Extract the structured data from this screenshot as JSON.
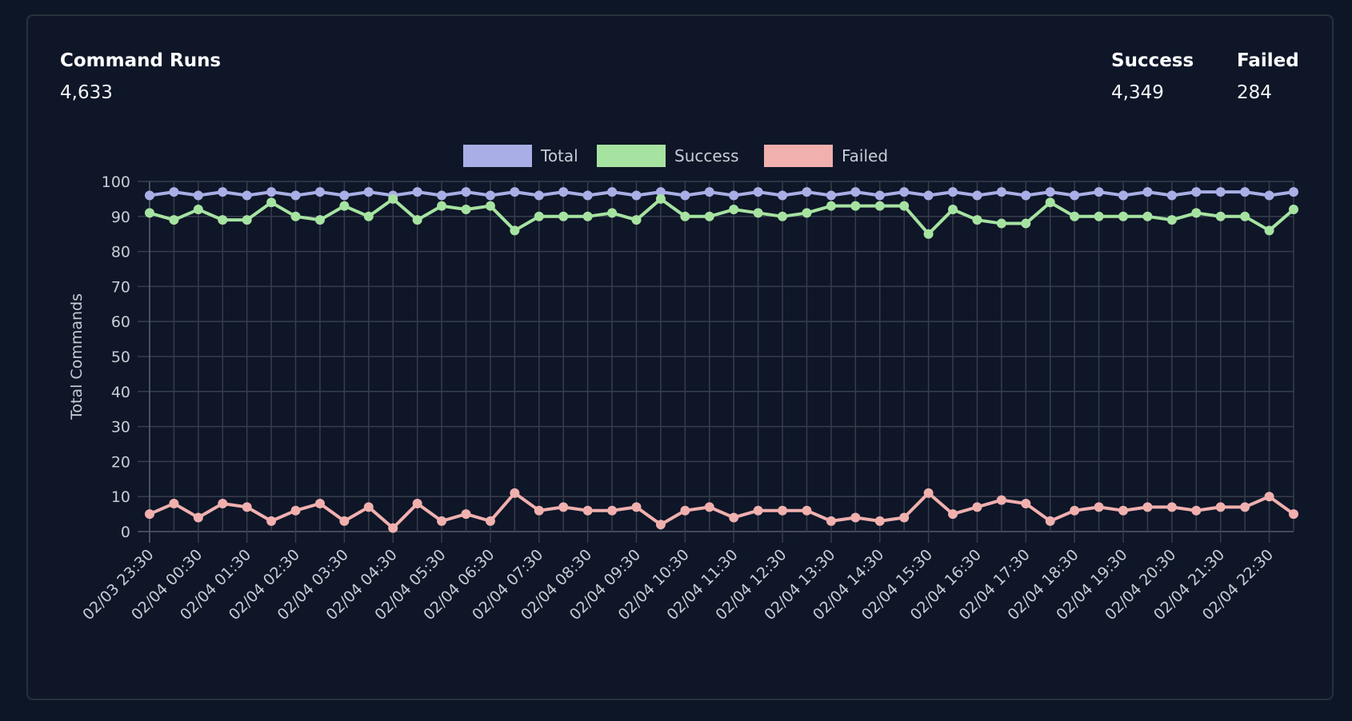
{
  "header": {
    "title": "Command Runs",
    "total_value": "4,633",
    "success_label": "Success",
    "success_value": "4,349",
    "failed_label": "Failed",
    "failed_value": "284"
  },
  "chart_data": {
    "type": "line",
    "ylabel": "Total Commands",
    "xlabel": "",
    "ylim": [
      0,
      100
    ],
    "yticks": [
      0,
      10,
      20,
      30,
      40,
      50,
      60,
      70,
      80,
      90,
      100
    ],
    "grid": true,
    "legend_position": "top",
    "x_tick_labels": [
      "02/03 23:30",
      "02/04 00:30",
      "02/04 01:30",
      "02/04 02:30",
      "02/04 03:30",
      "02/04 04:30",
      "02/04 05:30",
      "02/04 06:30",
      "02/04 07:30",
      "02/04 08:30",
      "02/04 09:30",
      "02/04 10:30",
      "02/04 11:30",
      "02/04 12:30",
      "02/04 13:30",
      "02/04 14:30",
      "02/04 15:30",
      "02/04 16:30",
      "02/04 17:30",
      "02/04 18:30",
      "02/04 19:30",
      "02/04 20:30",
      "02/04 21:30",
      "02/04 22:30"
    ],
    "x_interval": "30 min",
    "series": [
      {
        "name": "Total",
        "color": "#aaaee6",
        "values": [
          96,
          97,
          96,
          97,
          96,
          97,
          96,
          97,
          96,
          97,
          96,
          97,
          96,
          97,
          96,
          97,
          96,
          97,
          96,
          97,
          96,
          97,
          96,
          97,
          96,
          97,
          96,
          97,
          96,
          97,
          96,
          97,
          96,
          97,
          96,
          97,
          96,
          97,
          96,
          97,
          96,
          97,
          96,
          97,
          97,
          97,
          96,
          97
        ]
      },
      {
        "name": "Success",
        "color": "#a6e3a1",
        "values": [
          91,
          89,
          92,
          89,
          89,
          94,
          90,
          89,
          93,
          90,
          95,
          89,
          93,
          92,
          93,
          86,
          90,
          90,
          90,
          91,
          89,
          95,
          90,
          90,
          92,
          91,
          90,
          91,
          93,
          93,
          93,
          93,
          85,
          92,
          89,
          88,
          88,
          94,
          90,
          90,
          90,
          90,
          89,
          91,
          90,
          90,
          86,
          92
        ]
      },
      {
        "name": "Failed",
        "color": "#f0b0ae",
        "values": [
          5,
          8,
          4,
          8,
          7,
          3,
          6,
          8,
          3,
          7,
          1,
          8,
          3,
          5,
          3,
          11,
          6,
          7,
          6,
          6,
          7,
          2,
          6,
          7,
          4,
          6,
          6,
          6,
          3,
          4,
          3,
          4,
          11,
          5,
          7,
          9,
          8,
          3,
          6,
          7,
          6,
          7,
          7,
          6,
          7,
          7,
          10,
          5
        ]
      }
    ]
  }
}
